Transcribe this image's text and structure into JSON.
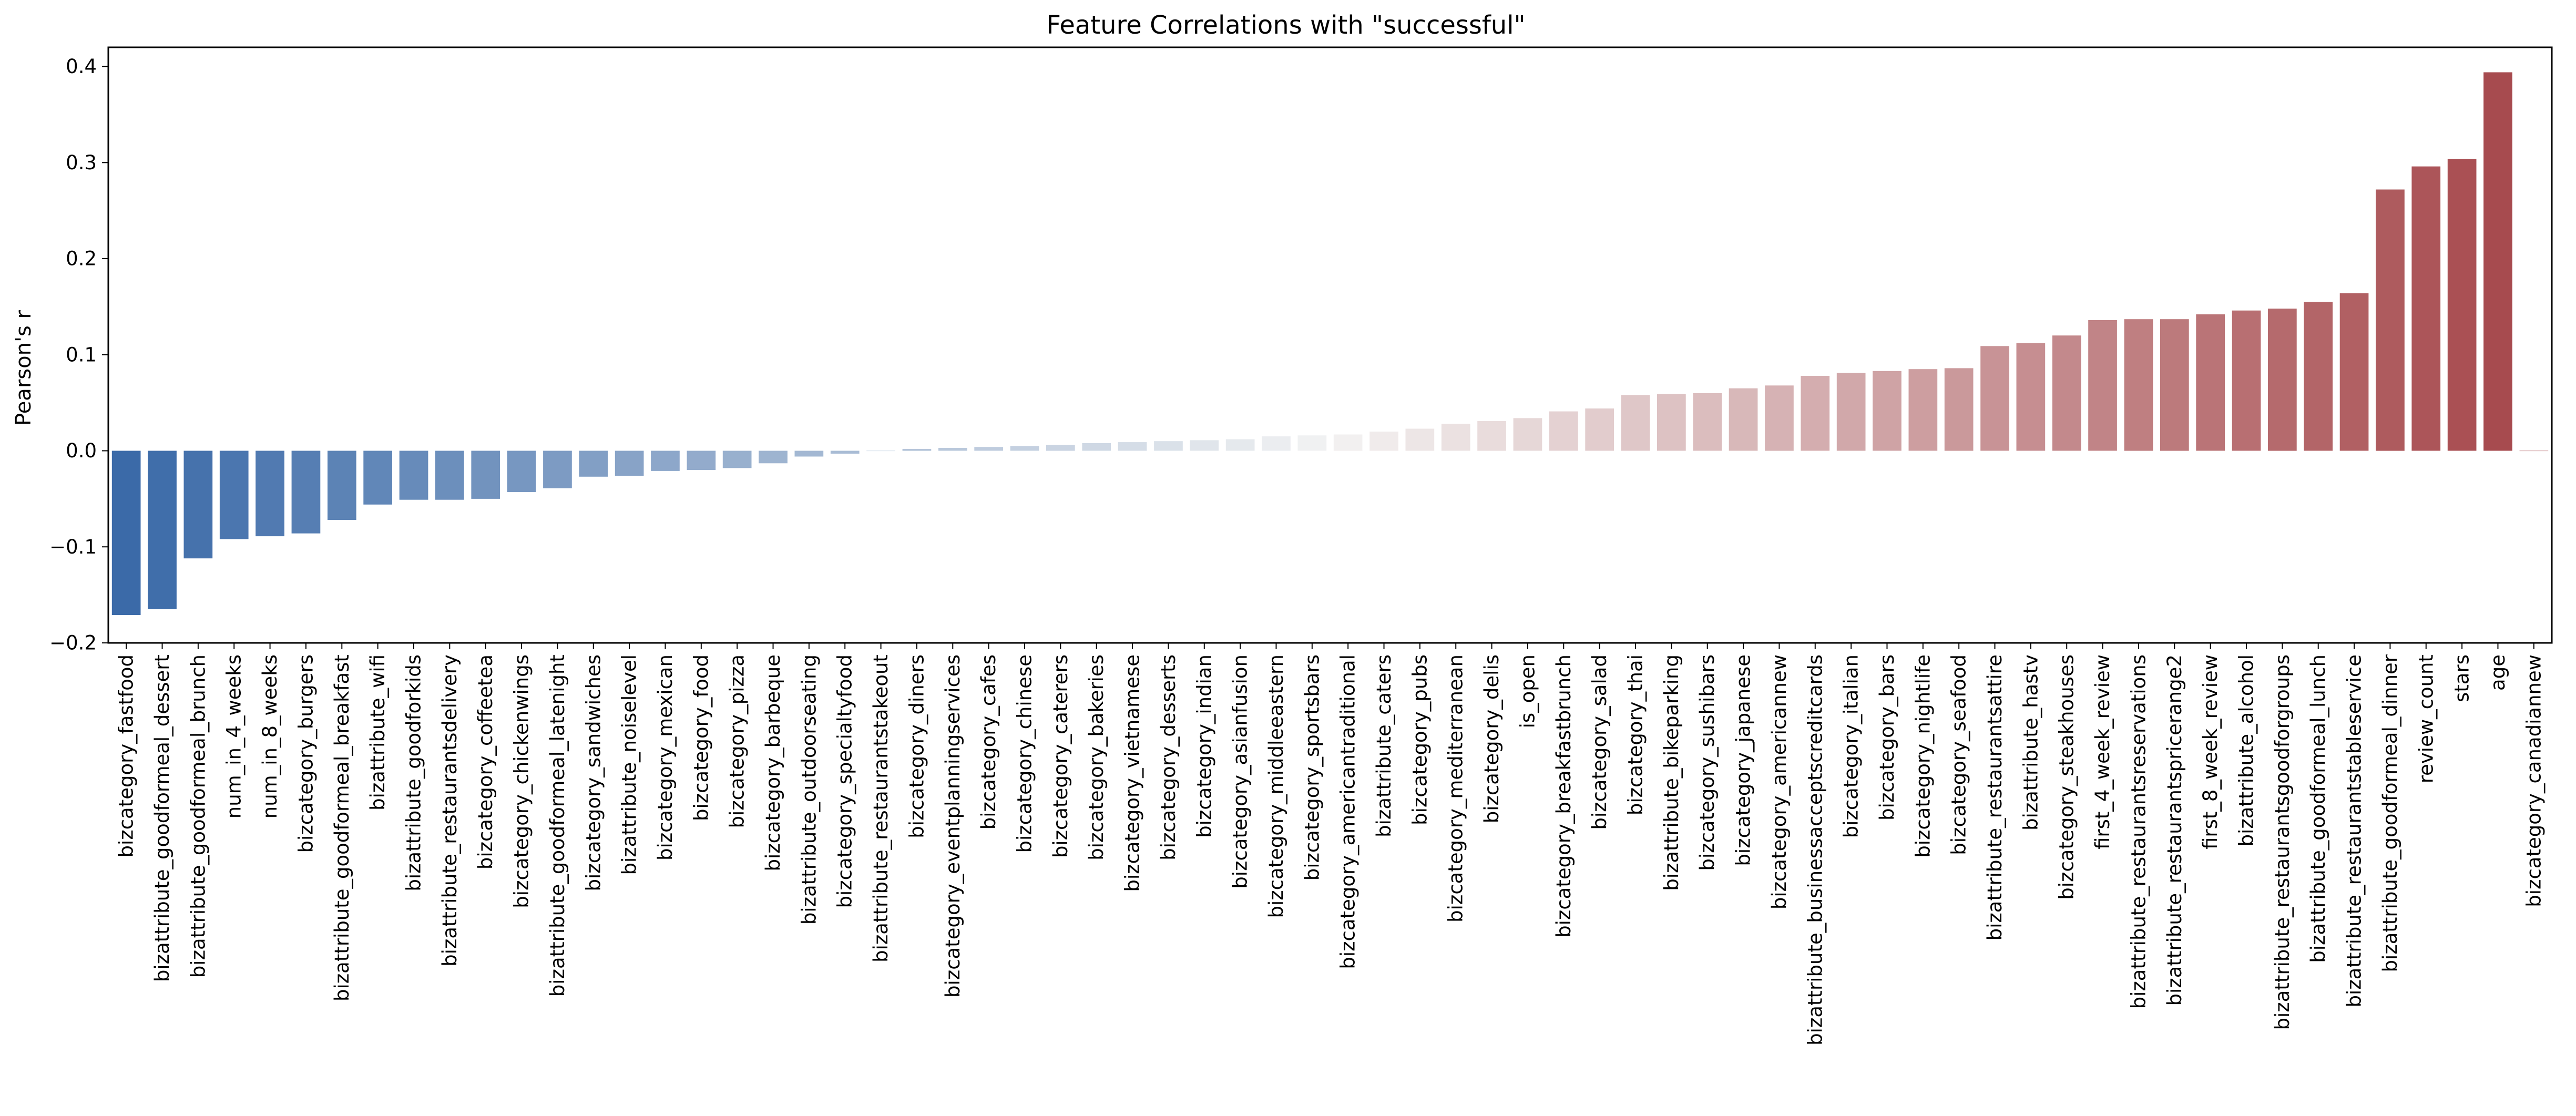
{
  "chart_data": {
    "type": "bar",
    "title": "Feature Correlations with \"successful\"",
    "xlabel": "",
    "ylabel": "Pearson's r",
    "ylim": [
      -0.2,
      0.42
    ],
    "yticks": [
      -0.2,
      -0.1,
      0.0,
      0.1,
      0.2,
      0.3,
      0.4
    ],
    "ytick_labels": [
      "−0.2",
      "−0.1",
      "0.0",
      "0.1",
      "0.2",
      "0.3",
      "0.4"
    ],
    "grid": false,
    "legend": "none",
    "colormap": {
      "negative_end": "#3b6aa8",
      "neutral": "#f3f3f3",
      "positive_end": "#a5464a"
    },
    "categories": [
      "bizcategory_fastfood",
      "bizattribute_goodformeal_dessert",
      "bizattribute_goodformeal_brunch",
      "num_in_4_weeks",
      "num_in_8_weeks",
      "bizcategory_burgers",
      "bizattribute_goodformeal_breakfast",
      "bizattribute_wifi",
      "bizattribute_goodforkids",
      "bizattribute_restaurantsdelivery",
      "bizcategory_coffeetea",
      "bizcategory_chickenwings",
      "bizattribute_goodformeal_latenight",
      "bizcategory_sandwiches",
      "bizattribute_noiselevel",
      "bizcategory_mexican",
      "bizcategory_food",
      "bizcategory_pizza",
      "bizcategory_barbeque",
      "bizattribute_outdoorseating",
      "bizcategory_specialtyfood",
      "bizattribute_restaurantstakeout",
      "bizcategory_diners",
      "bizcategory_eventplanningservices",
      "bizcategory_cafes",
      "bizcategory_chinese",
      "bizcategory_caterers",
      "bizcategory_bakeries",
      "bizcategory_vietnamese",
      "bizcategory_desserts",
      "bizcategory_indian",
      "bizcategory_asianfusion",
      "bizcategory_middleeastern",
      "bizcategory_sportsbars",
      "bizcategory_americantraditional",
      "bizattribute_caters",
      "bizcategory_pubs",
      "bizcategory_mediterranean",
      "bizcategory_delis",
      "is_open",
      "bizcategory_breakfastbrunch",
      "bizcategory_salad",
      "bizcategory_thai",
      "bizattribute_bikeparking",
      "bizcategory_sushibars",
      "bizcategory_japanese",
      "bizcategory_americannew",
      "bizattribute_businessacceptscreditcards",
      "bizcategory_italian",
      "bizcategory_bars",
      "bizcategory_nightlife",
      "bizcategory_seafood",
      "bizattribute_restaurantsattire",
      "bizattribute_hastv",
      "bizcategory_steakhouses",
      "first_4_week_review",
      "bizattribute_restaurantsreservations",
      "bizattribute_restaurantspricerange2",
      "first_8_week_review",
      "bizattribute_alcohol",
      "bizattribute_restaurantsgoodforgroups",
      "bizattribute_goodformeal_lunch",
      "bizattribute_restaurantstableservice",
      "bizattribute_goodformeal_dinner",
      "review_count",
      "stars",
      "age",
      "bizcategory_canadiannew"
    ],
    "values": [
      -0.171,
      -0.165,
      -0.112,
      -0.092,
      -0.089,
      -0.086,
      -0.072,
      -0.056,
      -0.051,
      -0.051,
      -0.05,
      -0.043,
      -0.039,
      -0.027,
      -0.026,
      -0.021,
      -0.02,
      -0.018,
      -0.013,
      -0.006,
      -0.003,
      0.0,
      0.002,
      0.003,
      0.004,
      0.005,
      0.006,
      0.008,
      0.009,
      0.01,
      0.011,
      0.012,
      0.015,
      0.016,
      0.017,
      0.02,
      0.023,
      0.028,
      0.031,
      0.034,
      0.041,
      0.044,
      0.058,
      0.059,
      0.06,
      0.065,
      0.068,
      0.078,
      0.081,
      0.083,
      0.085,
      0.086,
      0.109,
      0.112,
      0.12,
      0.136,
      0.137,
      0.137,
      0.142,
      0.146,
      0.148,
      0.155,
      0.164,
      0.272,
      0.296,
      0.304,
      0.394,
      0.0
    ]
  }
}
